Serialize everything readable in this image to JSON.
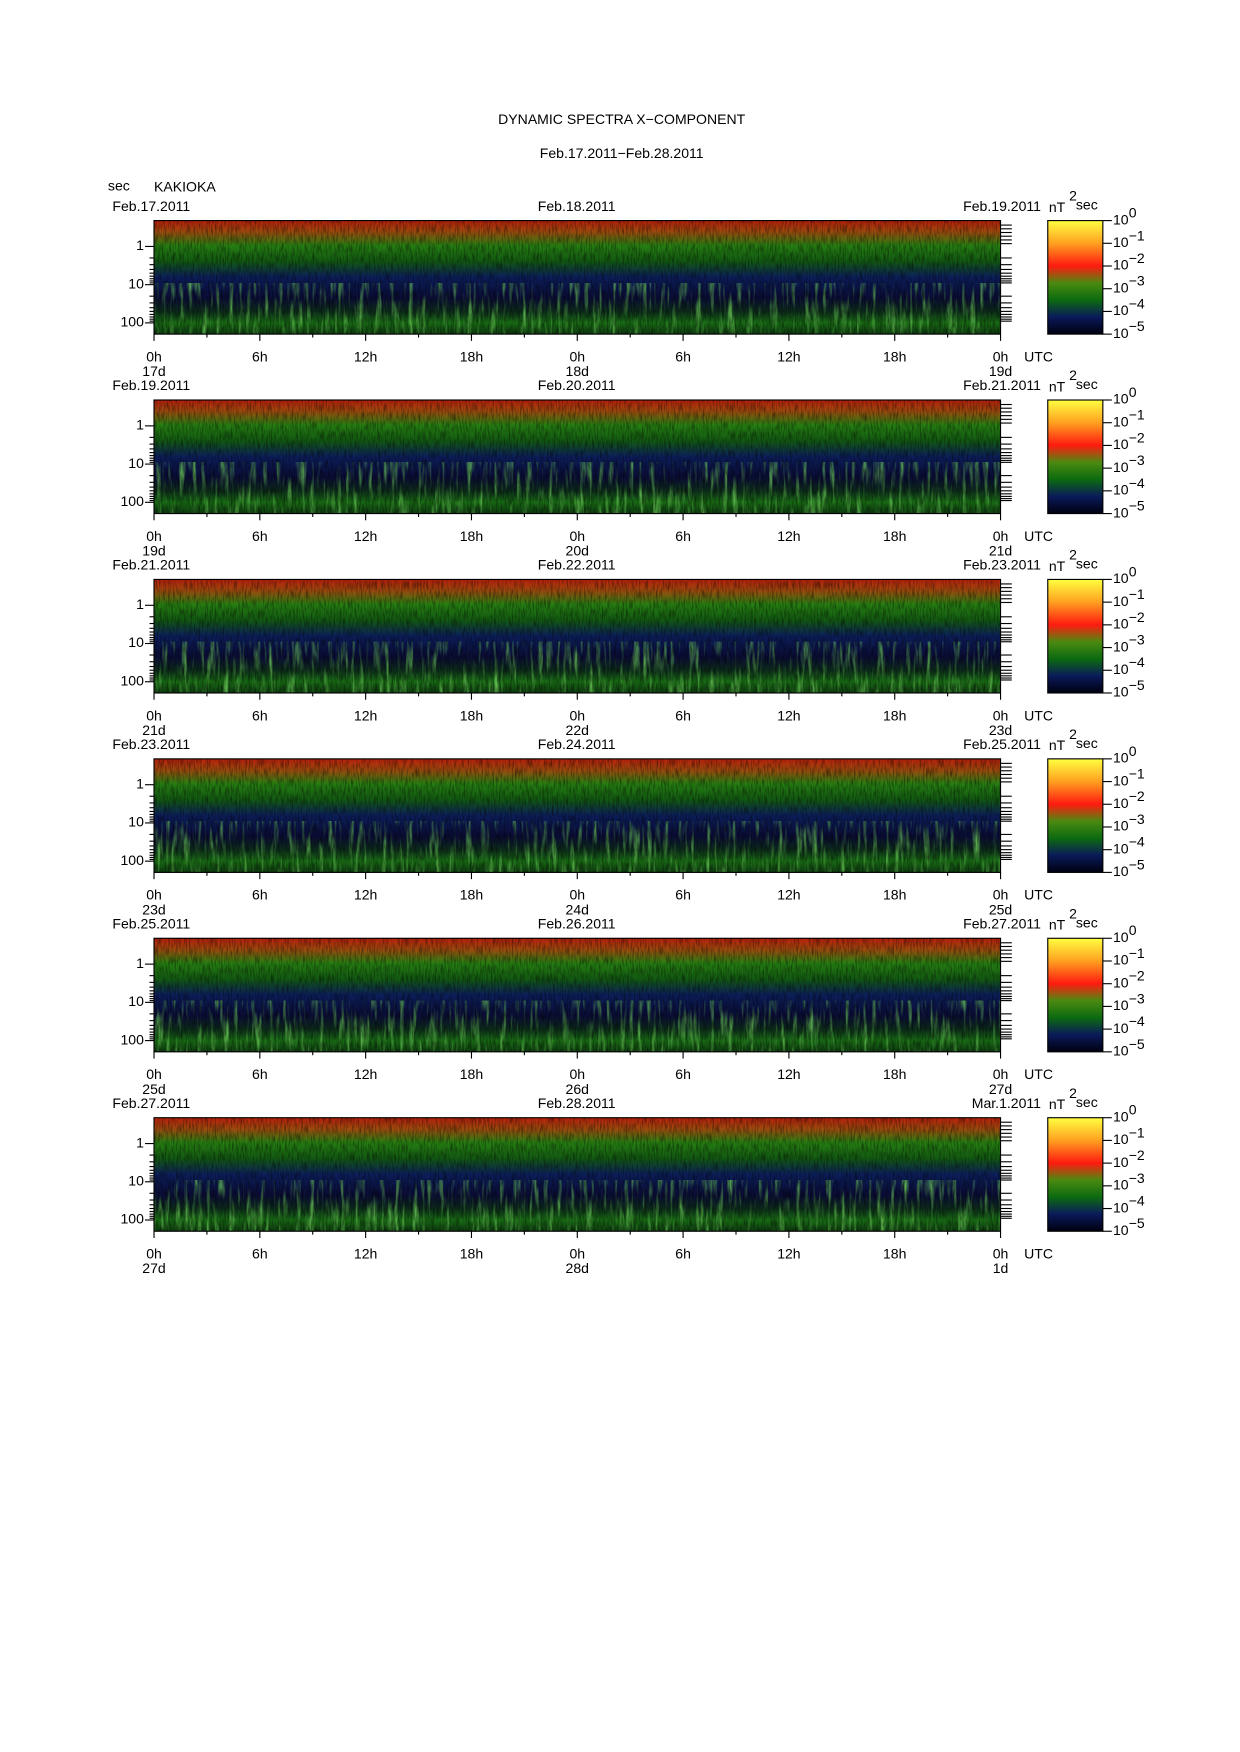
{
  "title": "DYNAMIC SPECTRA X−COMPONENT",
  "subtitle": "Feb.17.2011−Feb.28.2011",
  "y_unit": "sec",
  "station": "KAKIOKA",
  "colorbar_unit": {
    "base": "nT",
    "exp": "2",
    "suffix": "sec"
  },
  "y_ticks": [
    "1",
    "10",
    "100"
  ],
  "colorbar_ticks": {
    "base": "10",
    "exps": [
      "0",
      "−1",
      "−2",
      "−3",
      "−4",
      "−5"
    ]
  },
  "hour_ticks": [
    "0h",
    "6h",
    "12h",
    "18h",
    "0h",
    "6h",
    "12h",
    "18h",
    "0h"
  ],
  "time_zone": "UTC",
  "panels": [
    {
      "dates": [
        "Feb.17.2011",
        "Feb.18.2011",
        "Feb.19.2011"
      ],
      "days": [
        "17d",
        "18d",
        "19d"
      ]
    },
    {
      "dates": [
        "Feb.19.2011",
        "Feb.20.2011",
        "Feb.21.2011"
      ],
      "days": [
        "19d",
        "20d",
        "21d"
      ]
    },
    {
      "dates": [
        "Feb.21.2011",
        "Feb.22.2011",
        "Feb.23.2011"
      ],
      "days": [
        "21d",
        "22d",
        "23d"
      ]
    },
    {
      "dates": [
        "Feb.23.2011",
        "Feb.24.2011",
        "Feb.25.2011"
      ],
      "days": [
        "23d",
        "24d",
        "25d"
      ]
    },
    {
      "dates": [
        "Feb.25.2011",
        "Feb.26.2011",
        "Feb.27.2011"
      ],
      "days": [
        "25d",
        "26d",
        "27d"
      ]
    },
    {
      "dates": [
        "Feb.27.2011",
        "Feb.28.2011",
        "Mar.1.2011"
      ],
      "days": [
        "27d",
        "28d",
        "1d"
      ]
    }
  ]
}
